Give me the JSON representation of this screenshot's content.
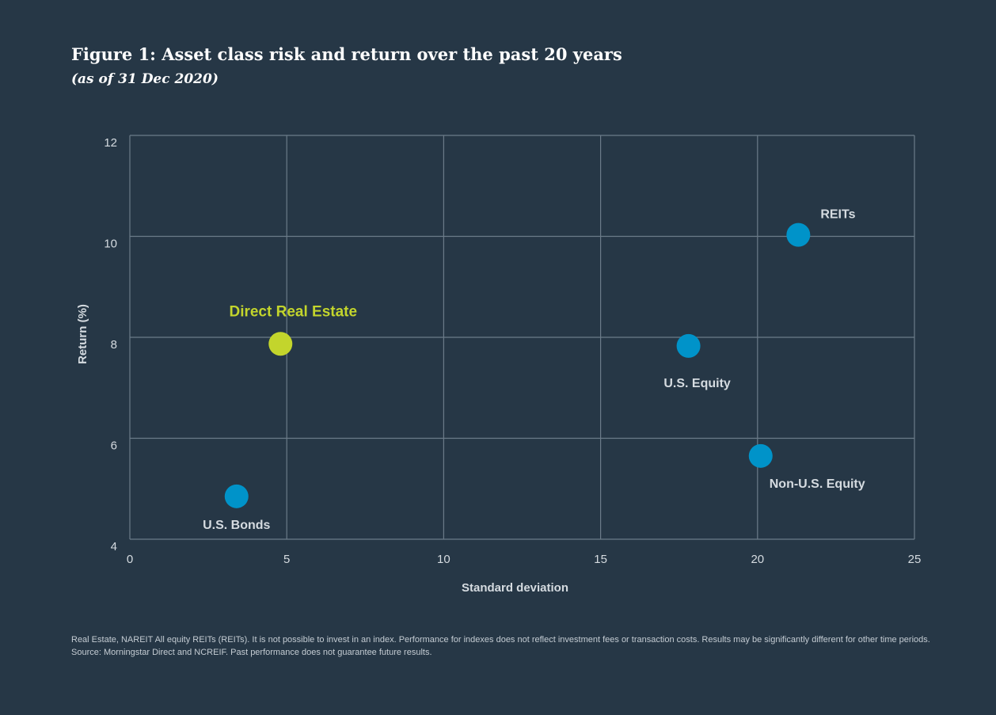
{
  "header": {
    "title": "Figure 1: Asset class risk and return over the past 20 years",
    "subtitle": "(as of 31 Dec 2020)"
  },
  "chart_data": {
    "type": "scatter",
    "xlabel": "Standard deviation",
    "ylabel": "Return (%)",
    "xlim": [
      0,
      25
    ],
    "ylim": [
      4,
      12
    ],
    "xticks": [
      0,
      5,
      10,
      15,
      20,
      25
    ],
    "yticks": [
      4,
      6,
      8,
      10,
      12
    ],
    "grid": true,
    "legend": "none",
    "points": [
      {
        "label": "U.S. Bonds",
        "x": 3.4,
        "y": 4.85,
        "color": "#0093c9"
      },
      {
        "label": "Direct Real Estate",
        "x": 4.8,
        "y": 7.87,
        "color": "#c3d52c"
      },
      {
        "label": "U.S. Equity",
        "x": 17.8,
        "y": 7.83,
        "color": "#0093c9"
      },
      {
        "label": "Non-U.S. Equity",
        "x": 20.1,
        "y": 5.65,
        "color": "#0093c9"
      },
      {
        "label": "REITs",
        "x": 21.3,
        "y": 10.03,
        "color": "#0093c9"
      }
    ]
  },
  "colors": {
    "background": "#263746",
    "grid": "#6b7b89",
    "text": "#d5dbe0",
    "highlight": "#c3d52c",
    "marker": "#0093c9"
  },
  "footnote": {
    "line1": "Real Estate, NAREIT All equity REITs (REITs). It is not possible to invest in an index. Performance for indexes does not reflect investment fees or transaction costs. Results may be significantly different for other time periods.",
    "line2": "Source: Morningstar Direct and NCREIF. Past performance does not guarantee future results."
  }
}
